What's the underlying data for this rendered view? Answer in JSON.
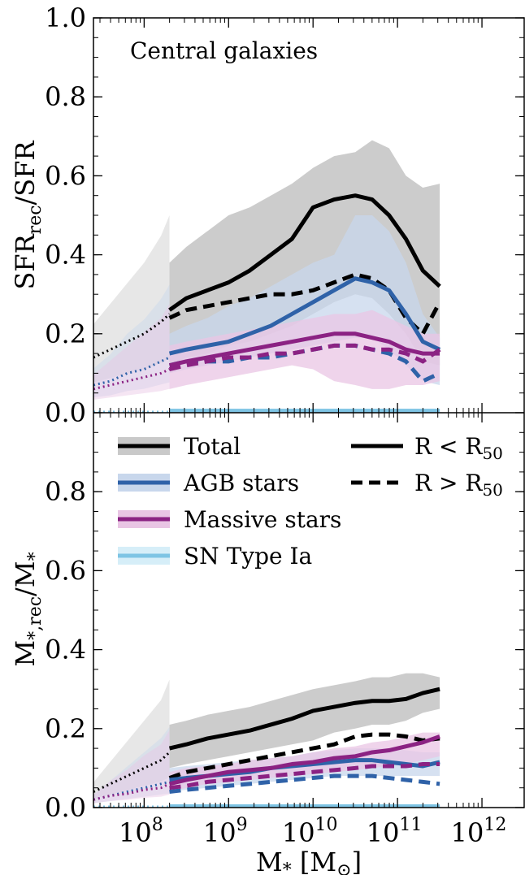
{
  "chart_data": [
    {
      "type": "line",
      "panel": "top",
      "annotation": "Central galaxies",
      "ylabel_main": "SFR",
      "ylabel_sub": "rec",
      "ylabel_tail": "/SFR",
      "ylim": [
        0.0,
        1.0
      ],
      "yticks": [
        "0.0",
        "0.2",
        "0.4",
        "0.6",
        "0.8",
        "1.0"
      ],
      "x_log10": [
        8.3,
        8.5,
        8.75,
        9.0,
        9.25,
        9.5,
        9.75,
        10.0,
        10.25,
        10.5,
        10.7,
        10.9,
        11.1,
        11.3,
        11.5
      ],
      "x_extrap_log10": [
        7.4,
        7.6,
        7.8,
        8.0,
        8.2,
        8.3
      ],
      "series": [
        {
          "name": "Total",
          "inner": [
            0.26,
            0.29,
            0.31,
            0.33,
            0.36,
            0.4,
            0.44,
            0.52,
            0.54,
            0.55,
            0.54,
            0.5,
            0.44,
            0.36,
            0.32
          ],
          "outer": [
            0.24,
            0.26,
            0.27,
            0.28,
            0.29,
            0.3,
            0.3,
            0.31,
            0.33,
            0.35,
            0.34,
            0.31,
            0.24,
            0.2,
            0.28
          ],
          "band_lo": [
            0.12,
            0.14,
            0.15,
            0.17,
            0.18,
            0.2,
            0.22,
            0.25,
            0.28,
            0.3,
            0.29,
            0.25,
            0.2,
            0.13,
            0.12
          ],
          "band_hi": [
            0.38,
            0.42,
            0.46,
            0.5,
            0.52,
            0.55,
            0.58,
            0.62,
            0.65,
            0.66,
            0.69,
            0.67,
            0.6,
            0.57,
            0.58
          ],
          "extrap": [
            0.14,
            0.16,
            0.18,
            0.2,
            0.23,
            0.25
          ]
        },
        {
          "name": "AGB stars",
          "inner": [
            0.15,
            0.16,
            0.17,
            0.18,
            0.2,
            0.22,
            0.25,
            0.28,
            0.31,
            0.34,
            0.33,
            0.31,
            0.25,
            0.18,
            0.16
          ],
          "outer": [
            0.12,
            0.13,
            0.13,
            0.13,
            0.14,
            0.14,
            0.15,
            0.16,
            0.17,
            0.17,
            0.16,
            0.15,
            0.13,
            0.08,
            0.1
          ],
          "band_lo": [
            0.1,
            0.11,
            0.12,
            0.13,
            0.14,
            0.15,
            0.16,
            0.17,
            0.18,
            0.19,
            0.19,
            0.16,
            0.12,
            0.08,
            0.07
          ],
          "band_hi": [
            0.2,
            0.22,
            0.24,
            0.27,
            0.29,
            0.32,
            0.35,
            0.38,
            0.4,
            0.5,
            0.5,
            0.46,
            0.38,
            0.25,
            0.19
          ],
          "extrap": [
            0.07,
            0.08,
            0.1,
            0.11,
            0.13,
            0.14
          ]
        },
        {
          "name": "Massive stars",
          "inner": [
            0.12,
            0.13,
            0.14,
            0.15,
            0.16,
            0.17,
            0.18,
            0.19,
            0.2,
            0.2,
            0.19,
            0.18,
            0.16,
            0.15,
            0.15
          ],
          "outer": [
            0.11,
            0.12,
            0.13,
            0.14,
            0.14,
            0.15,
            0.15,
            0.16,
            0.17,
            0.17,
            0.16,
            0.16,
            0.15,
            0.13,
            0.16
          ],
          "band_lo": [
            0.06,
            0.07,
            0.08,
            0.09,
            0.1,
            0.11,
            0.12,
            0.11,
            0.08,
            0.07,
            0.06,
            0.06,
            0.07,
            0.07,
            0.08
          ],
          "band_hi": [
            0.17,
            0.18,
            0.19,
            0.2,
            0.21,
            0.22,
            0.23,
            0.24,
            0.25,
            0.25,
            0.26,
            0.24,
            0.22,
            0.2,
            0.2
          ],
          "extrap": [
            0.06,
            0.07,
            0.08,
            0.09,
            0.1,
            0.11
          ]
        },
        {
          "name": "SN Type Ia",
          "inner": [
            0.005,
            0.005,
            0.005,
            0.005,
            0.005,
            0.005,
            0.005,
            0.005,
            0.005,
            0.005,
            0.005,
            0.005,
            0.005,
            0.005,
            0.005
          ],
          "outer": [
            0.004,
            0.004,
            0.004,
            0.004,
            0.004,
            0.004,
            0.004,
            0.004,
            0.004,
            0.004,
            0.004,
            0.004,
            0.004,
            0.004,
            0.004
          ],
          "band_lo": [
            0.0,
            0.0,
            0.0,
            0.0,
            0.0,
            0.0,
            0.0,
            0.0,
            0.0,
            0.0,
            0.0,
            0.0,
            0.0,
            0.0,
            0.0
          ],
          "band_hi": [
            0.01,
            0.01,
            0.01,
            0.01,
            0.01,
            0.01,
            0.01,
            0.01,
            0.01,
            0.01,
            0.01,
            0.01,
            0.01,
            0.01,
            0.01
          ],
          "extrap": [
            0.002,
            0.002,
            0.002,
            0.002,
            0.002,
            0.002
          ]
        }
      ]
    },
    {
      "type": "line",
      "panel": "bottom",
      "ylabel_main": "M",
      "ylabel_sub": "*,rec",
      "ylabel_tail": "/M",
      "ylabel_tail_sub": "*",
      "ylim": [
        0.0,
        1.0
      ],
      "yticks": [
        "0.0",
        "0.2",
        "0.4",
        "0.6",
        "0.8"
      ],
      "x_log10": [
        8.3,
        8.5,
        8.75,
        9.0,
        9.25,
        9.5,
        9.75,
        10.0,
        10.25,
        10.5,
        10.7,
        10.9,
        11.1,
        11.3,
        11.5
      ],
      "x_extrap_log10": [
        7.4,
        7.6,
        7.8,
        8.0,
        8.2,
        8.3
      ],
      "xlabel_main": "M",
      "xlabel_sub": "*",
      "xlabel_unit_open": " [M",
      "xlabel_unit_close": "]",
      "xlim_log10": [
        7.4,
        12.5
      ],
      "xticks_log10": [
        8,
        9,
        10,
        11,
        12
      ],
      "xtick_base": "10",
      "series": [
        {
          "name": "Total",
          "inner": [
            0.15,
            0.16,
            0.175,
            0.185,
            0.195,
            0.21,
            0.225,
            0.245,
            0.255,
            0.265,
            0.27,
            0.27,
            0.275,
            0.29,
            0.3
          ],
          "outer": [
            0.075,
            0.09,
            0.1,
            0.11,
            0.12,
            0.13,
            0.14,
            0.15,
            0.16,
            0.18,
            0.185,
            0.185,
            0.18,
            0.17,
            0.175
          ],
          "band_lo": [
            0.1,
            0.11,
            0.12,
            0.13,
            0.14,
            0.15,
            0.16,
            0.17,
            0.19,
            0.2,
            0.21,
            0.21,
            0.22,
            0.24,
            0.25
          ],
          "band_hi": [
            0.21,
            0.22,
            0.235,
            0.245,
            0.255,
            0.27,
            0.285,
            0.3,
            0.31,
            0.32,
            0.33,
            0.33,
            0.34,
            0.34,
            0.33
          ],
          "extrap": [
            0.04,
            0.06,
            0.08,
            0.1,
            0.12,
            0.14
          ]
        },
        {
          "name": "AGB stars",
          "inner": [
            0.07,
            0.075,
            0.08,
            0.085,
            0.09,
            0.1,
            0.105,
            0.11,
            0.115,
            0.12,
            0.12,
            0.115,
            0.11,
            0.105,
            0.115
          ],
          "outer": [
            0.04,
            0.045,
            0.05,
            0.055,
            0.06,
            0.065,
            0.07,
            0.075,
            0.08,
            0.08,
            0.08,
            0.075,
            0.07,
            0.065,
            0.06
          ],
          "band_lo": [
            0.04,
            0.045,
            0.05,
            0.055,
            0.06,
            0.065,
            0.07,
            0.075,
            0.08,
            0.08,
            0.08,
            0.08,
            0.08,
            0.08,
            0.08
          ],
          "band_hi": [
            0.1,
            0.105,
            0.11,
            0.115,
            0.12,
            0.125,
            0.13,
            0.14,
            0.145,
            0.15,
            0.15,
            0.15,
            0.145,
            0.14,
            0.14
          ],
          "extrap": [
            0.02,
            0.03,
            0.04,
            0.05,
            0.06,
            0.065
          ]
        },
        {
          "name": "Massive stars",
          "inner": [
            0.06,
            0.07,
            0.08,
            0.09,
            0.095,
            0.1,
            0.11,
            0.115,
            0.125,
            0.13,
            0.14,
            0.145,
            0.155,
            0.165,
            0.18
          ],
          "outer": [
            0.05,
            0.055,
            0.065,
            0.07,
            0.075,
            0.08,
            0.085,
            0.09,
            0.095,
            0.1,
            0.105,
            0.105,
            0.105,
            0.11,
            0.11
          ],
          "band_lo": [
            0.04,
            0.05,
            0.06,
            0.065,
            0.07,
            0.075,
            0.08,
            0.085,
            0.09,
            0.095,
            0.1,
            0.105,
            0.11,
            0.12,
            0.13
          ],
          "band_hi": [
            0.09,
            0.1,
            0.105,
            0.11,
            0.12,
            0.125,
            0.13,
            0.14,
            0.15,
            0.155,
            0.165,
            0.17,
            0.18,
            0.19,
            0.19
          ],
          "extrap": [
            0.02,
            0.03,
            0.035,
            0.045,
            0.05,
            0.06
          ]
        },
        {
          "name": "SN Type Ia",
          "inner": [
            0.003,
            0.003,
            0.003,
            0.003,
            0.003,
            0.003,
            0.003,
            0.003,
            0.003,
            0.003,
            0.003,
            0.003,
            0.003,
            0.003,
            0.003
          ],
          "outer": [
            0.002,
            0.002,
            0.002,
            0.002,
            0.002,
            0.002,
            0.002,
            0.002,
            0.002,
            0.002,
            0.002,
            0.002,
            0.002,
            0.002,
            0.002
          ],
          "band_lo": [
            0.0,
            0.0,
            0.0,
            0.0,
            0.0,
            0.0,
            0.0,
            0.0,
            0.0,
            0.0,
            0.0,
            0.0,
            0.0,
            0.0,
            0.0
          ],
          "band_hi": [
            0.006,
            0.006,
            0.006,
            0.006,
            0.006,
            0.006,
            0.006,
            0.006,
            0.006,
            0.006,
            0.006,
            0.006,
            0.006,
            0.006,
            0.006
          ],
          "extrap": [
            0.002,
            0.002,
            0.002,
            0.002,
            0.002,
            0.002
          ]
        }
      ],
      "legend_left": [
        "Total",
        "AGB stars",
        "Massive stars",
        "SN Type Ia"
      ],
      "legend_right": [
        {
          "label_main": "R < R",
          "label_sub": "50",
          "style": "solid"
        },
        {
          "label_main": "R > R",
          "label_sub": "50",
          "style": "dashed"
        }
      ]
    }
  ],
  "colors": {
    "Total": "#000000",
    "AGB stars": "#2f62a8",
    "Massive stars": "#8b2283",
    "SN Type Ia": "#7ec4e4",
    "Total_band": "#c9c9c9",
    "AGB stars_band": "#c8d7ec",
    "Massive stars_band": "#e9c5e4",
    "SN Type Ia_band": "#d6eef8"
  }
}
